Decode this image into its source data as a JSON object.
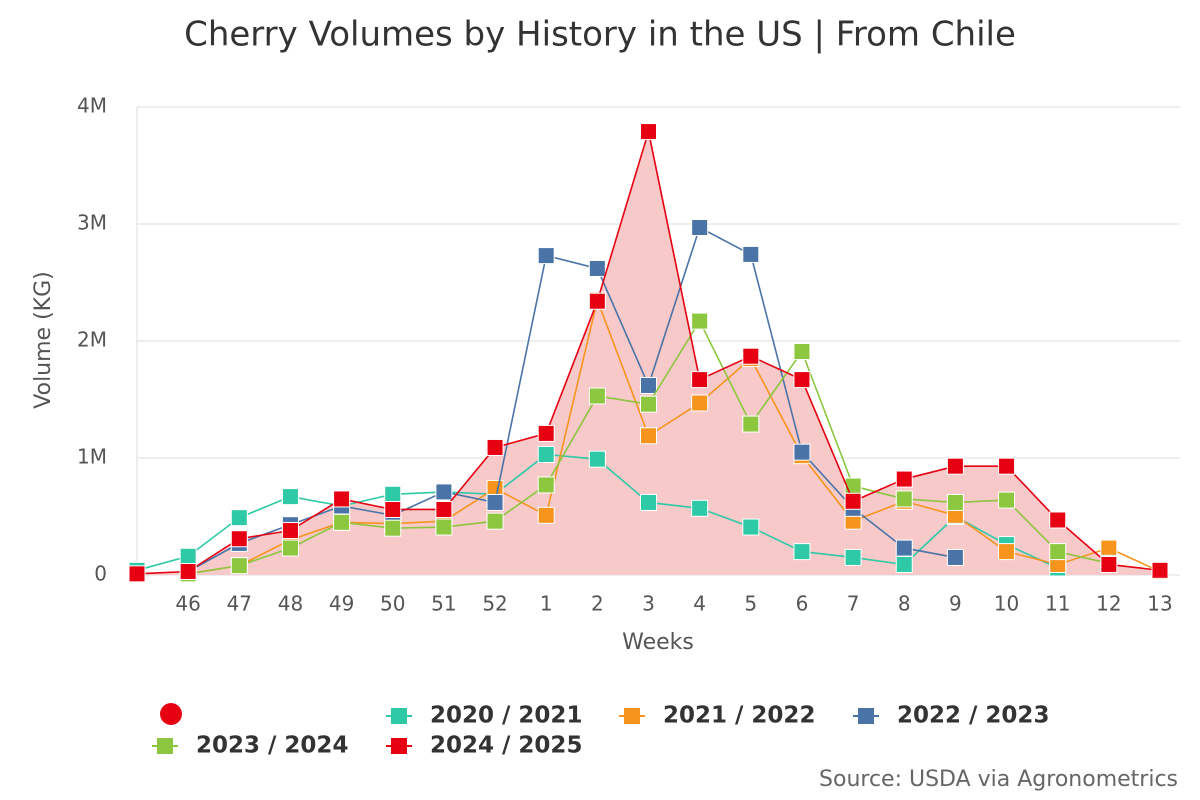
{
  "chart_data": {
    "type": "line",
    "title": "Cherry Volumes by History in the US | From Chile",
    "y_label": "Volume (KG)",
    "x_label": "Weeks",
    "source": "Source: USDA via Agronometrics",
    "categories": [
      null,
      "46",
      "47",
      "48",
      "49",
      "50",
      "51",
      "52",
      "1",
      "2",
      "3",
      "4",
      "5",
      "6",
      "7",
      "8",
      "9",
      "10",
      "11",
      "12",
      "13"
    ],
    "ylim": [
      0,
      4000000
    ],
    "yticks": [
      0,
      {
        "value": 1000000,
        "label": "1M"
      },
      {
        "value": 2000000,
        "label": "2M"
      },
      {
        "value": 3000000,
        "label": "3M"
      },
      {
        "value": 4000000,
        "label": "4M"
      }
    ],
    "grid": true,
    "series": [
      {
        "name": "2020 / 2021",
        "color": "#2ec9a7",
        "values": [
          40000,
          160000,
          490000,
          670000,
          590000,
          690000,
          710000,
          690000,
          1030000,
          990000,
          620000,
          570000,
          410000,
          200000,
          150000,
          90000,
          500000,
          260000,
          60000,
          null,
          null
        ]
      },
      {
        "name": "2021 / 2022",
        "color": "#f7941d",
        "values": [
          null,
          10000,
          80000,
          300000,
          450000,
          440000,
          460000,
          740000,
          510000,
          2350000,
          1190000,
          1470000,
          1850000,
          1020000,
          460000,
          630000,
          510000,
          200000,
          90000,
          230000,
          30000
        ]
      },
      {
        "name": "2022 / 2023",
        "color": "#4a74a8",
        "values": [
          null,
          30000,
          270000,
          430000,
          590000,
          510000,
          710000,
          620000,
          2730000,
          2620000,
          1620000,
          2970000,
          2740000,
          1050000,
          570000,
          230000,
          150000,
          null,
          null,
          null,
          null
        ]
      },
      {
        "name": "2023 / 2024",
        "color": "#8dc63f",
        "values": [
          null,
          10000,
          80000,
          230000,
          450000,
          400000,
          410000,
          460000,
          770000,
          1530000,
          1460000,
          2170000,
          1290000,
          1910000,
          760000,
          650000,
          620000,
          640000,
          200000,
          100000,
          null
        ]
      },
      {
        "name": "2024 / 2025",
        "color": "#e60012",
        "area": true,
        "area_color": "#f7c9c9",
        "values": [
          10000,
          30000,
          310000,
          380000,
          650000,
          560000,
          560000,
          1090000,
          1210000,
          2340000,
          3790000,
          1670000,
          1870000,
          1670000,
          630000,
          820000,
          930000,
          930000,
          470000,
          90000,
          40000
        ]
      }
    ]
  }
}
